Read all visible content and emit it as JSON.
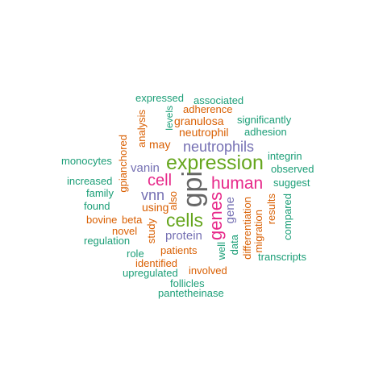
{
  "words": {
    "gpi": "gpi",
    "expression": "expression",
    "cells": "cells",
    "genes": "genes",
    "human": "human",
    "cell": "cell",
    "neutrophils": "neutrophils",
    "vnn": "vnn",
    "vanin": "vanin",
    "gene": "gene",
    "protein": "protein",
    "using": "using",
    "neutrophil": "neutrophil",
    "granulosa": "granulosa",
    "adherence": "adherence",
    "associated": "associated",
    "expressed": "expressed",
    "may": "may",
    "analysis": "analysis",
    "levels": "levels",
    "significantly": "significantly",
    "adhesion": "adhesion",
    "integrin": "integrin",
    "observed": "observed",
    "suggest": "suggest",
    "monocytes": "monocytes",
    "gpianchored": "gpianchored",
    "increased": "increased",
    "family": "family",
    "found": "found",
    "bovine": "bovine",
    "beta": "beta",
    "novel": "novel",
    "regulation": "regulation",
    "study": "study",
    "also": "also",
    "role": "role",
    "patients": "patients",
    "identified": "identified",
    "involved": "involved",
    "upregulated": "upregulated",
    "follicles": "follicles",
    "pantetheinase": "pantetheinase",
    "well": "well",
    "data": "data",
    "differentiation": "differentiation",
    "migration": "migration",
    "results": "results",
    "compared": "compared",
    "transcripts": "transcripts"
  },
  "colors": {
    "green": "#1b9e77",
    "orange": "#d95f02",
    "purple": "#7570b3",
    "magenta": "#e7298a",
    "lime": "#66a61e",
    "gray": "#666666"
  }
}
